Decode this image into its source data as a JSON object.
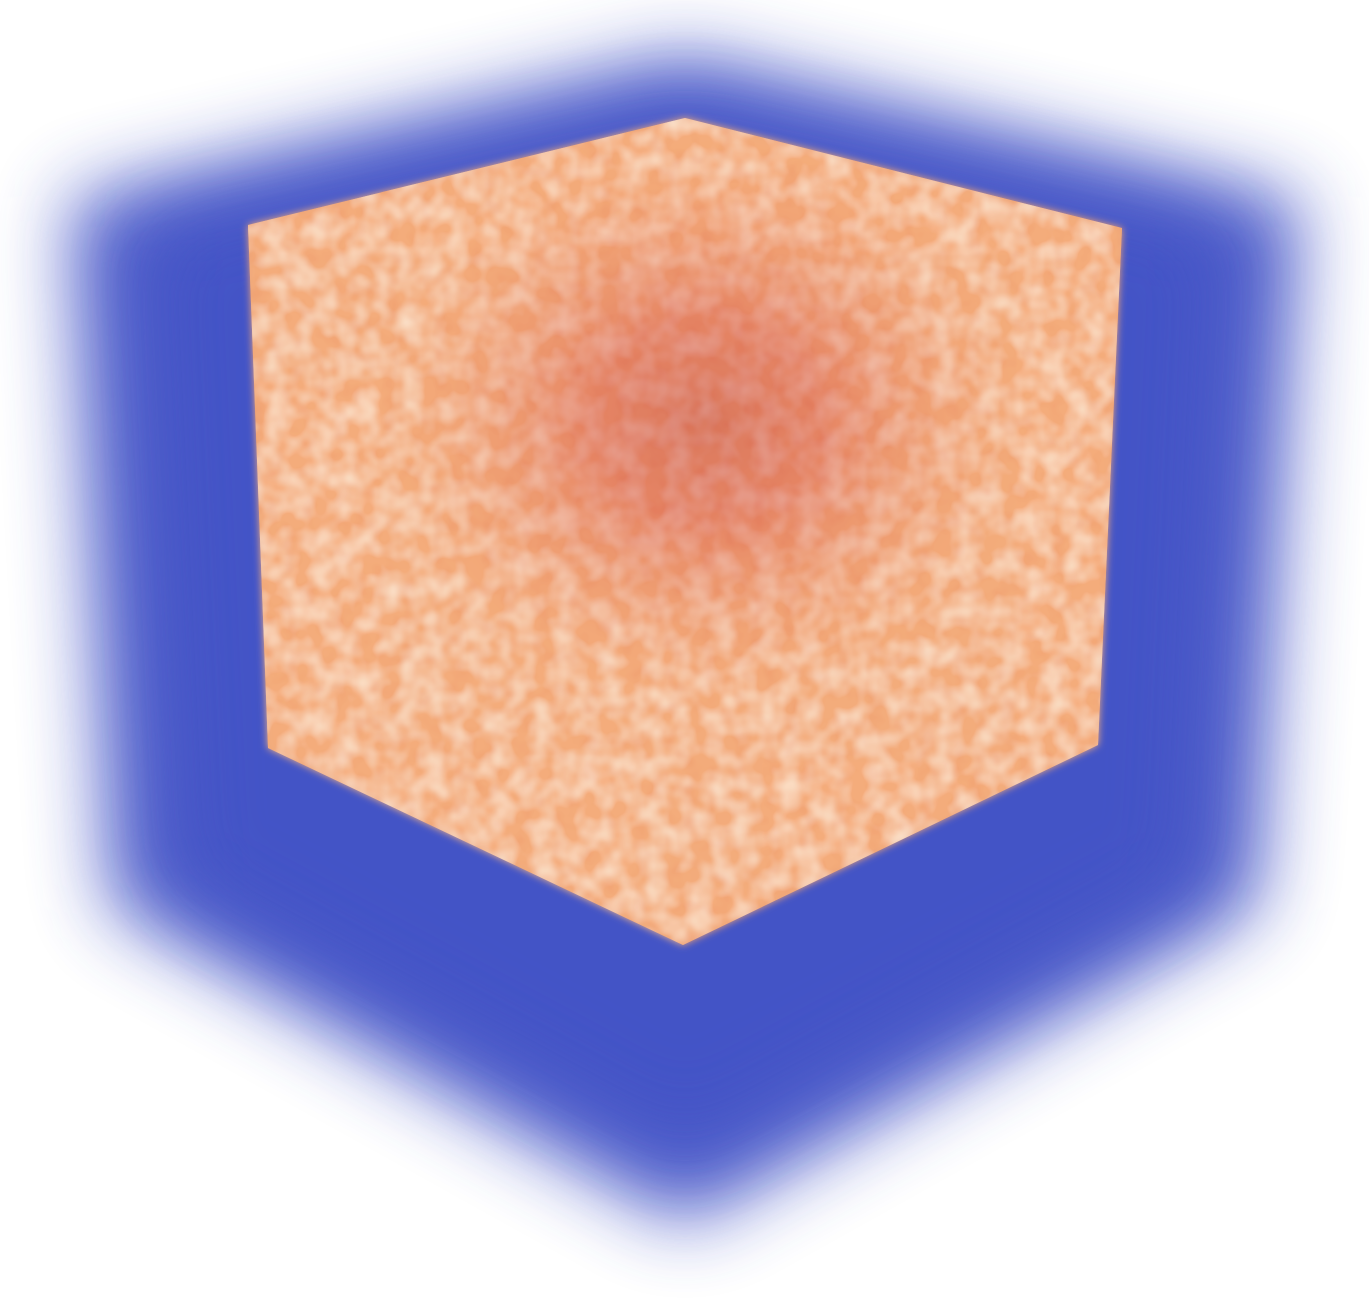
{
  "colors": {
    "background": "#ffffff",
    "outer_volume": "#4756c8",
    "outer_volume_light": "#6b78d6",
    "inner_light": "#f9c89a",
    "inner_mid": "#f08d5c",
    "inner_dark": "#c7282a",
    "inner_darkest": "#b01a22"
  }
}
